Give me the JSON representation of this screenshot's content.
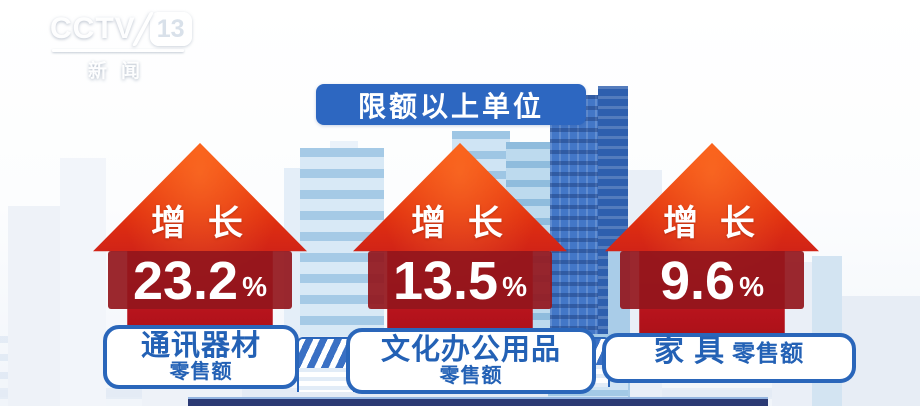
{
  "logo": {
    "name": "CCTV",
    "number": "13",
    "subtitle": "新闻"
  },
  "badge": {
    "label": "限额以上单位"
  },
  "columns": [
    {
      "growth": "增 长",
      "value": "23.2",
      "unit": "%",
      "category": "通讯器材",
      "category_sub": "零售额"
    },
    {
      "growth": "增 长",
      "value": "13.5",
      "unit": "%",
      "category": "文化办公用品",
      "category_sub": "零售额"
    },
    {
      "growth": "增 长",
      "value": "9.6",
      "unit": "%",
      "category": "家 具",
      "category_sub": "零售额"
    }
  ],
  "chart_data": {
    "type": "bar",
    "title": "限额以上单位",
    "series_label": "增长",
    "categories": [
      "通讯器材零售额",
      "文化办公用品零售额",
      "家具零售额"
    ],
    "values": [
      23.2,
      13.5,
      9.6
    ],
    "unit": "%",
    "annotations": [
      "增长 23.2%",
      "增长 13.5%",
      "增长 9.6%"
    ],
    "legend_position": "none",
    "grid": false
  },
  "colors": {
    "badge_bg": "#2d67c1",
    "arrow_top": "#f8500e",
    "arrow_bottom": "#ad1119",
    "value_band_bg": "#92161c",
    "label_border": "#2a66ba",
    "label_text": "#2361b5",
    "bottom_bar": "#2b3a74",
    "background": "#f1f5fa"
  }
}
